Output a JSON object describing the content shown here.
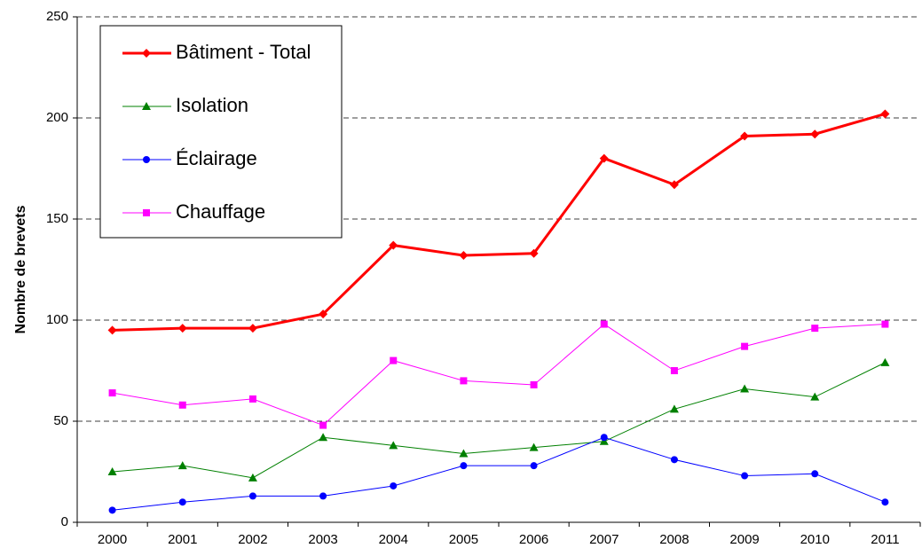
{
  "chart_data": {
    "type": "line",
    "y_label": "Nombre de brevets",
    "categories": [
      "2000",
      "2001",
      "2002",
      "2003",
      "2004",
      "2005",
      "2006",
      "2007",
      "2008",
      "2009",
      "2010",
      "2011"
    ],
    "series": [
      {
        "name": "Bâtiment - Total",
        "color": "#ff0000",
        "marker": "diamond",
        "width": 3,
        "values": [
          95,
          96,
          96,
          103,
          137,
          132,
          133,
          180,
          167,
          191,
          192,
          202
        ]
      },
      {
        "name": "Isolation",
        "color": "#008000",
        "marker": "triangle",
        "width": 1,
        "values": [
          25,
          28,
          22,
          42,
          38,
          34,
          37,
          40,
          56,
          66,
          62,
          79
        ]
      },
      {
        "name": "Éclairage",
        "color": "#0000ff",
        "marker": "circle",
        "width": 1,
        "values": [
          6,
          10,
          13,
          13,
          18,
          28,
          28,
          42,
          31,
          23,
          24,
          10
        ]
      },
      {
        "name": "Chauffage",
        "color": "#ff00ff",
        "marker": "square",
        "width": 1,
        "values": [
          64,
          58,
          61,
          48,
          80,
          70,
          68,
          98,
          75,
          87,
          96,
          98
        ]
      }
    ],
    "ylim": [
      0,
      250
    ],
    "yticks": [
      0,
      50,
      100,
      150,
      200,
      250
    ],
    "grid": true,
    "legend": "upper left"
  }
}
